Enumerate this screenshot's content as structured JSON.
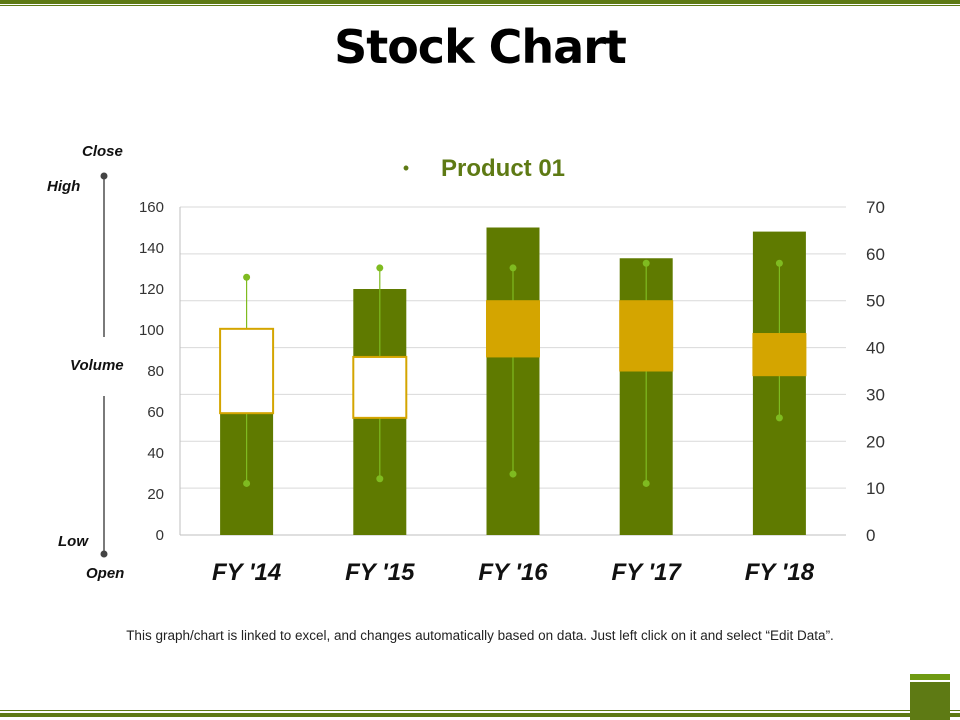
{
  "page": {
    "title": "Stock Chart",
    "footnote": "This graph/chart is linked to excel, and changes automatically  based on data. Just left click on it and select “Edit Data”."
  },
  "legend_labels": {
    "close": "Close",
    "high": "High",
    "volume": "Volume",
    "low": "Low",
    "open": "Open"
  },
  "colors": {
    "accent_green": "#5e7a14",
    "volume_bar": "#5f7a00",
    "up_box": "#ffffff",
    "down_box": "#d4a500",
    "box_border": "#d4a500",
    "hilo_line": "#7fbb20",
    "gridline": "#d9d9d9",
    "legend_text": "#5e7a14"
  },
  "chart_data": {
    "type": "bar",
    "subtype": "stock-volume-open-high-low-close",
    "categories": [
      "FY '14",
      "FY '15",
      "FY '16",
      "FY '17",
      "FY '18"
    ],
    "legend": [
      "Product 01"
    ],
    "legend_position": "top",
    "grid": true,
    "y_left": {
      "min": 0,
      "max": 160,
      "ticks": [
        0,
        20,
        40,
        60,
        80,
        100,
        120,
        140,
        160
      ]
    },
    "y_right": {
      "min": 0,
      "max": 70,
      "ticks": [
        0,
        10,
        20,
        30,
        40,
        50,
        60,
        70
      ]
    },
    "volume": [
      100,
      120,
      150,
      135,
      148
    ],
    "open": [
      26,
      25,
      50,
      50,
      43
    ],
    "high": [
      55,
      57,
      57,
      58,
      58
    ],
    "low": [
      11,
      12,
      13,
      11,
      25
    ],
    "close": [
      44,
      38,
      38,
      35,
      34
    ]
  }
}
